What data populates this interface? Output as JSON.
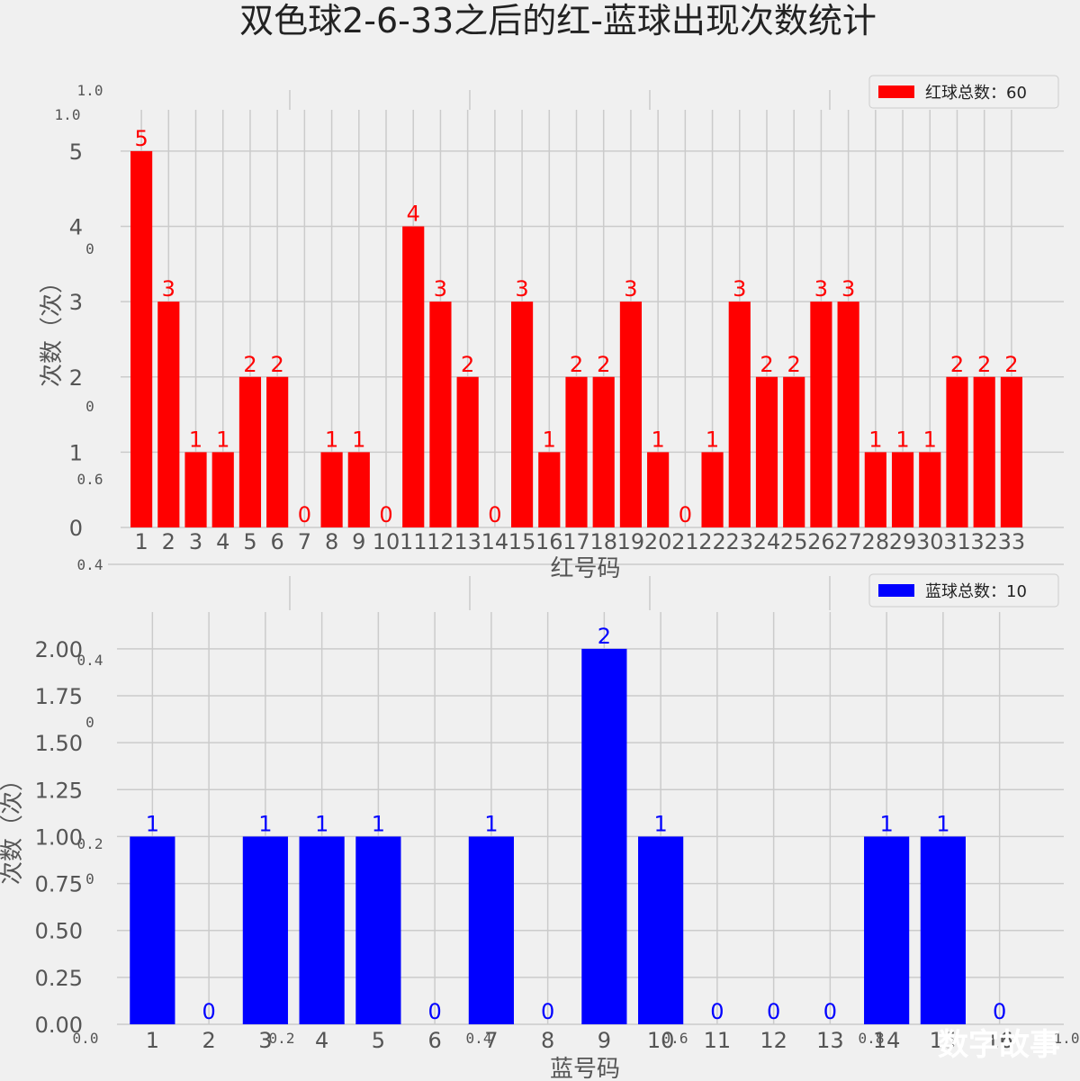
{
  "title": "双色球2-6-33之后的红-蓝球出现次数统计",
  "watermark": "数字故事",
  "background_ticks": {
    "y": [
      "1.0",
      "0",
      "0.6",
      "0.4",
      "0.2",
      "0.0"
    ],
    "x": [
      "0.0",
      "0.2",
      "0.4",
      "0.6",
      "0.8",
      "1.0"
    ]
  },
  "chart_data": [
    {
      "type": "bar",
      "name": "red",
      "color": "#ff0000",
      "label_color": "#ff0000",
      "categories": [
        "1",
        "2",
        "3",
        "4",
        "5",
        "6",
        "7",
        "8",
        "9",
        "10",
        "11",
        "12",
        "13",
        "14",
        "15",
        "16",
        "17",
        "18",
        "19",
        "20",
        "21",
        "22",
        "23",
        "24",
        "25",
        "26",
        "27",
        "28",
        "29",
        "30",
        "31",
        "32",
        "33"
      ],
      "values": [
        5,
        3,
        1,
        1,
        2,
        2,
        0,
        1,
        1,
        0,
        4,
        3,
        2,
        0,
        3,
        1,
        2,
        2,
        3,
        1,
        0,
        1,
        3,
        2,
        2,
        3,
        3,
        1,
        1,
        1,
        2,
        2,
        2
      ],
      "xlabel": "红号码",
      "ylabel": "次数（次）",
      "ylim": [
        0,
        5.25
      ],
      "yticks": [
        0,
        1,
        2,
        3,
        4,
        5
      ],
      "ytick_labels": [
        "0",
        "1",
        "2",
        "3",
        "4",
        "5"
      ],
      "ghost_tick_1_0": "1.0",
      "legend": "红球总数：60",
      "legend_position": "upper right",
      "grid": true
    },
    {
      "type": "bar",
      "name": "blue",
      "color": "#0000ff",
      "label_color": "#0000ff",
      "categories": [
        "1",
        "2",
        "3",
        "4",
        "5",
        "6",
        "7",
        "8",
        "9",
        "10",
        "11",
        "12",
        "13",
        "14",
        "15",
        "16"
      ],
      "values": [
        1,
        0,
        1,
        1,
        1,
        0,
        1,
        0,
        2,
        1,
        0,
        0,
        0,
        1,
        1,
        0
      ],
      "xlabel": "蓝号码",
      "ylabel": "次数（次）",
      "ylim": [
        0,
        2.1
      ],
      "yticks": [
        0,
        0.25,
        0.5,
        0.75,
        1.0,
        1.25,
        1.5,
        1.75,
        2.0
      ],
      "ytick_labels": [
        "0.00",
        "0.25",
        "0.50",
        "0.75",
        "1.00",
        "1.25",
        "1.50",
        "1.75",
        "2.00"
      ],
      "legend": "蓝球总数：10",
      "legend_position": "upper right",
      "grid": true
    }
  ]
}
